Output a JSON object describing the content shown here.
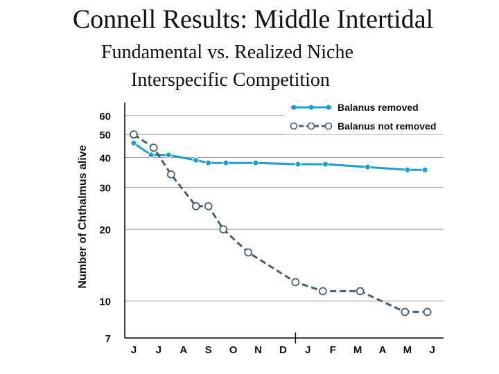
{
  "slide": {
    "title": "Connell Results: Middle Intertidal",
    "subtitle_1": "Fundamental vs. Realized Niche",
    "subtitle_2": "Interspecific Competition"
  },
  "chart_data": {
    "type": "line",
    "ylabel": "Number of Chthalmus alive",
    "xlabel": "",
    "y_scale": "log",
    "ylim": [
      7,
      62
    ],
    "y_ticks": [
      60,
      50,
      40,
      30,
      20,
      10,
      7
    ],
    "categories": [
      "J",
      "J",
      "A",
      "S",
      "O",
      "N",
      "D",
      "J",
      "F",
      "M",
      "A",
      "M",
      "J"
    ],
    "year_divider_after_index": 6,
    "grid": true,
    "legend_position": "top-right",
    "series": [
      {
        "name": "Balanus removed",
        "color": "#1a9fd0",
        "line_style": "solid",
        "marker": "filled-circle",
        "points": [
          {
            "x": 0.0,
            "y": 46
          },
          {
            "x": 0.7,
            "y": 41
          },
          {
            "x": 1.4,
            "y": 41
          },
          {
            "x": 2.5,
            "y": 39
          },
          {
            "x": 3.0,
            "y": 38
          },
          {
            "x": 3.7,
            "y": 38
          },
          {
            "x": 4.9,
            "y": 38
          },
          {
            "x": 6.6,
            "y": 37.5
          },
          {
            "x": 7.7,
            "y": 37.5
          },
          {
            "x": 9.4,
            "y": 36.5
          },
          {
            "x": 11.0,
            "y": 35.5
          },
          {
            "x": 11.7,
            "y": 35.5
          }
        ]
      },
      {
        "name": "Balanus not removed",
        "color": "#4a5f66",
        "line_style": "dashed",
        "marker": "open-circle",
        "points": [
          {
            "x": 0.0,
            "y": 50
          },
          {
            "x": 0.8,
            "y": 44
          },
          {
            "x": 1.5,
            "y": 34
          },
          {
            "x": 2.5,
            "y": 25
          },
          {
            "x": 3.0,
            "y": 25
          },
          {
            "x": 3.6,
            "y": 20
          },
          {
            "x": 4.6,
            "y": 16
          },
          {
            "x": 6.5,
            "y": 12
          },
          {
            "x": 7.6,
            "y": 11
          },
          {
            "x": 9.1,
            "y": 11
          },
          {
            "x": 10.9,
            "y": 9
          },
          {
            "x": 11.8,
            "y": 9
          }
        ]
      }
    ]
  }
}
